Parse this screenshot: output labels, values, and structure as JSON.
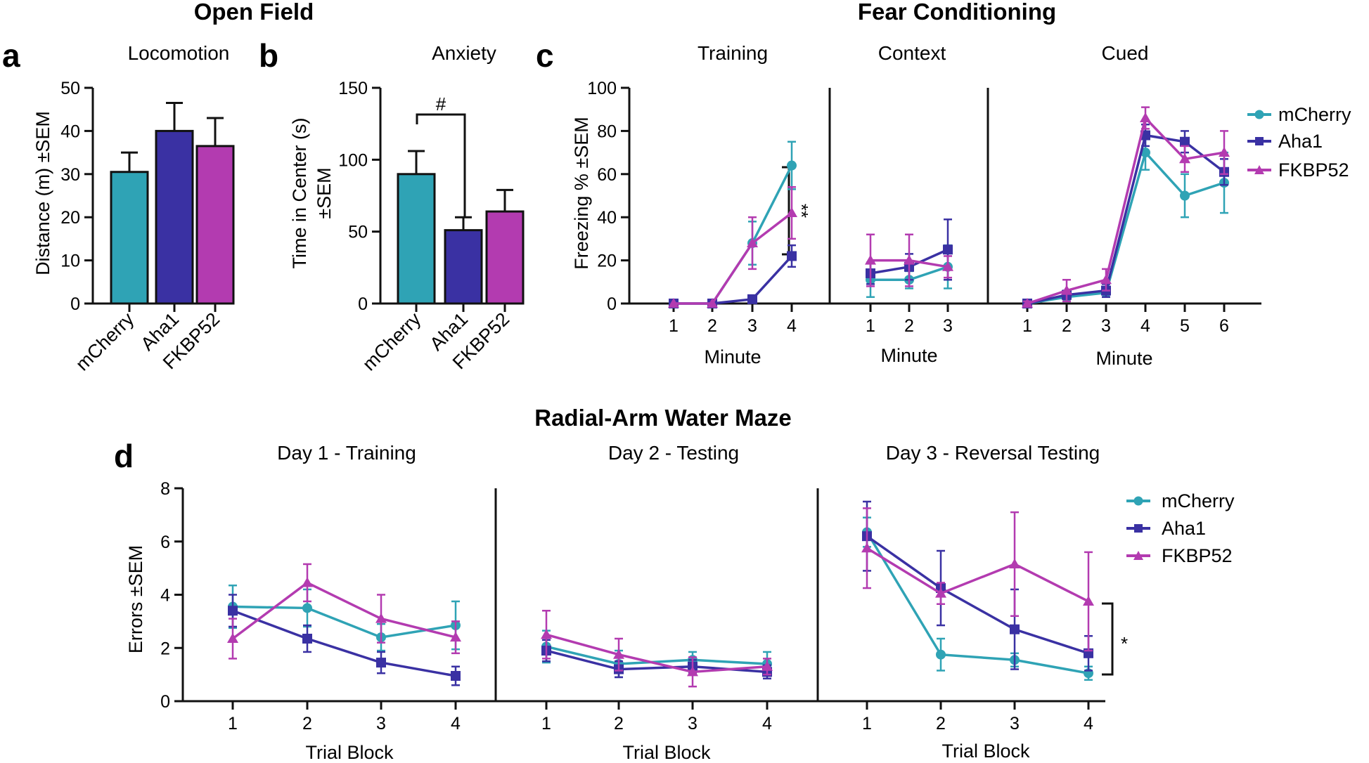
{
  "figure": {
    "section_open_field": "Open Field",
    "section_fear": "Fear Conditioning",
    "section_ram": "Radial-Arm Water Maze"
  },
  "colors": {
    "mCherry": "#2fa3b5",
    "Aha1": "#3a31a3",
    "FKBP52": "#b33bb0"
  },
  "legend": [
    "mCherry",
    "Aha1",
    "FKBP52"
  ],
  "chart_data": [
    {
      "id": "a",
      "type": "bar",
      "letter": "a",
      "title": "Locomotion",
      "ylabel": "Distance (m) ±SEM",
      "ylim": [
        0,
        50
      ],
      "yticks": [
        0,
        10,
        20,
        30,
        40,
        50
      ],
      "categories": [
        "mCherry",
        "Aha1",
        "FKBP52"
      ],
      "values": [
        30.5,
        40,
        36.5
      ],
      "errors": [
        4.5,
        6.5,
        6.5
      ]
    },
    {
      "id": "b",
      "type": "bar",
      "letter": "b",
      "title": "Anxiety",
      "ylabel_line1": "Time in Center (s)",
      "ylabel_line2": "±SEM",
      "ylim": [
        0,
        150
      ],
      "yticks": [
        0,
        50,
        100,
        150
      ],
      "categories": [
        "mCherry",
        "Aha1",
        "FKBP52"
      ],
      "values": [
        90,
        51,
        64
      ],
      "errors": [
        16,
        9,
        15
      ],
      "annotation": "#"
    },
    {
      "id": "c",
      "type": "line",
      "letter": "c",
      "ylabel": "Freezing % ±SEM",
      "xlabel": "Minute",
      "ylim": [
        0,
        100
      ],
      "yticks": [
        0,
        20,
        40,
        60,
        80,
        100
      ],
      "panels": [
        {
          "title": "Training",
          "x": [
            1,
            2,
            3,
            4
          ],
          "annotation": "**",
          "series": [
            {
              "name": "mCherry",
              "values": [
                0,
                0,
                28,
                64
              ],
              "errors": [
                0,
                0,
                10,
                11
              ]
            },
            {
              "name": "Aha1",
              "values": [
                0,
                0,
                2,
                22
              ],
              "errors": [
                0,
                0,
                1,
                5
              ]
            },
            {
              "name": "FKBP52",
              "values": [
                0,
                0,
                28,
                42
              ],
              "errors": [
                0,
                0,
                12,
                12
              ]
            }
          ]
        },
        {
          "title": "Context",
          "x": [
            1,
            2,
            3
          ],
          "series": [
            {
              "name": "mCherry",
              "values": [
                11,
                11,
                17
              ],
              "errors": [
                8,
                4,
                10
              ]
            },
            {
              "name": "Aha1",
              "values": [
                14,
                17,
                25
              ],
              "errors": [
                5,
                6,
                14
              ]
            },
            {
              "name": "FKBP52",
              "values": [
                20,
                20,
                17
              ],
              "errors": [
                12,
                12,
                5
              ]
            }
          ]
        },
        {
          "title": "Cued",
          "x": [
            1,
            2,
            3,
            4,
            5,
            6
          ],
          "series": [
            {
              "name": "mCherry",
              "values": [
                0,
                3,
                5,
                70,
                50,
                56
              ],
              "errors": [
                1,
                2,
                2,
                8,
                10,
                14
              ]
            },
            {
              "name": "Aha1",
              "values": [
                0,
                4,
                6,
                78,
                75,
                61
              ],
              "errors": [
                1,
                2,
                3,
                5,
                5,
                6
              ]
            },
            {
              "name": "FKBP52",
              "values": [
                0,
                6,
                11,
                86,
                67,
                70
              ],
              "errors": [
                1,
                5,
                5,
                5,
                6,
                10
              ]
            }
          ]
        }
      ]
    },
    {
      "id": "d",
      "type": "line",
      "letter": "d",
      "ylabel": "Errors ±SEM",
      "xlabel": "Trial Block",
      "ylim": [
        0,
        8
      ],
      "yticks": [
        0,
        2,
        4,
        6,
        8
      ],
      "panels": [
        {
          "title": "Day 1 - Training",
          "x": [
            1,
            2,
            3,
            4
          ],
          "series": [
            {
              "name": "mCherry",
              "values": [
                3.55,
                3.5,
                2.4,
                2.85
              ],
              "errors": [
                0.8,
                0.7,
                0.5,
                0.9
              ]
            },
            {
              "name": "Aha1",
              "values": [
                3.4,
                2.35,
                1.45,
                0.95
              ],
              "errors": [
                0.6,
                0.5,
                0.4,
                0.35
              ]
            },
            {
              "name": "FKBP52",
              "values": [
                2.35,
                4.45,
                3.1,
                2.4
              ],
              "errors": [
                0.75,
                0.7,
                0.9,
                0.6
              ]
            }
          ]
        },
        {
          "title": "Day 2 - Testing",
          "x": [
            1,
            2,
            3,
            4
          ],
          "series": [
            {
              "name": "mCherry",
              "values": [
                2.05,
                1.4,
                1.55,
                1.4
              ],
              "errors": [
                0.6,
                0.5,
                0.3,
                0.45
              ]
            },
            {
              "name": "Aha1",
              "values": [
                1.9,
                1.2,
                1.3,
                1.1
              ],
              "errors": [
                0.4,
                0.3,
                0.25,
                0.25
              ]
            },
            {
              "name": "FKBP52",
              "values": [
                2.5,
                1.75,
                1.1,
                1.3
              ],
              "errors": [
                0.9,
                0.6,
                0.55,
                0.3
              ]
            }
          ]
        },
        {
          "title": "Day 3 - Reversal Testing",
          "x": [
            1,
            2,
            3,
            4
          ],
          "annotation": "*",
          "series": [
            {
              "name": "mCherry",
              "values": [
                6.35,
                1.75,
                1.55,
                1.05
              ],
              "errors": [
                0.55,
                0.6,
                0.25,
                0.25
              ]
            },
            {
              "name": "Aha1",
              "values": [
                6.2,
                4.25,
                2.7,
                1.8
              ],
              "errors": [
                1.3,
                1.4,
                1.5,
                0.65
              ]
            },
            {
              "name": "FKBP52",
              "values": [
                5.75,
                4.05,
                5.15,
                3.75
              ],
              "errors": [
                1.5,
                0.4,
                1.95,
                1.85
              ]
            }
          ]
        }
      ]
    }
  ]
}
